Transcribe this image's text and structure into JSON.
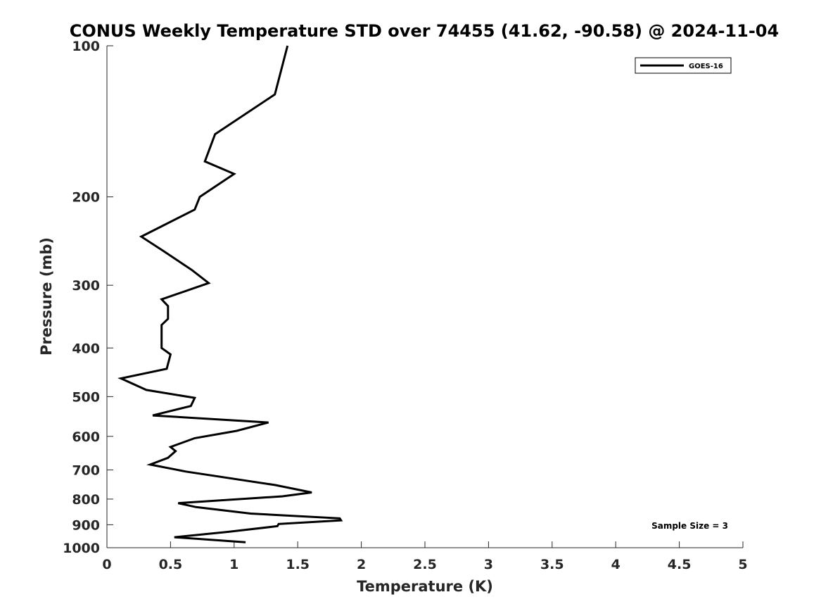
{
  "chart_data": {
    "type": "line",
    "title": "CONUS Weekly Temperature STD over 74455 (41.62, -90.58) @ 2024-11-04",
    "xlabel": "Temperature (K)",
    "ylabel": "Pressure (mb)",
    "xlim": [
      0,
      5
    ],
    "ylim": [
      100,
      1000
    ],
    "yscale": "log",
    "y_reversed": true,
    "x_ticks": [
      0,
      0.5,
      1,
      1.5,
      2,
      2.5,
      3,
      3.5,
      4,
      4.5,
      5
    ],
    "x_tick_labels": [
      "0",
      "0.5",
      "1",
      "1.5",
      "2",
      "2.5",
      "3",
      "3.5",
      "4",
      "4.5",
      "5"
    ],
    "y_ticks": [
      100,
      200,
      300,
      400,
      500,
      600,
      700,
      800,
      900,
      1000
    ],
    "y_tick_labels": [
      "100",
      "200",
      "300",
      "400",
      "500",
      "600",
      "700",
      "800",
      "900",
      "1000"
    ],
    "grid": false,
    "legend_position": "top-right",
    "annotation": "Sample Size = 3",
    "series": [
      {
        "name": "GOES-16",
        "color": "#000000",
        "points": [
          [
            1.42,
            100
          ],
          [
            1.32,
            125
          ],
          [
            0.85,
            150
          ],
          [
            0.77,
            170
          ],
          [
            1.0,
            180
          ],
          [
            0.73,
            200
          ],
          [
            0.69,
            212
          ],
          [
            0.27,
            240
          ],
          [
            0.45,
            257
          ],
          [
            0.67,
            280
          ],
          [
            0.8,
            297
          ],
          [
            0.43,
            320
          ],
          [
            0.48,
            330
          ],
          [
            0.48,
            350
          ],
          [
            0.43,
            360
          ],
          [
            0.43,
            375
          ],
          [
            0.43,
            400
          ],
          [
            0.5,
            412
          ],
          [
            0.47,
            440
          ],
          [
            0.11,
            460
          ],
          [
            0.31,
            485
          ],
          [
            0.69,
            503
          ],
          [
            0.66,
            522
          ],
          [
            0.36,
            545
          ],
          [
            1.27,
            563
          ],
          [
            1.02,
            585
          ],
          [
            0.69,
            605
          ],
          [
            0.5,
            630
          ],
          [
            0.54,
            642
          ],
          [
            0.48,
            662
          ],
          [
            0.34,
            683
          ],
          [
            0.62,
            705
          ],
          [
            1.32,
            750
          ],
          [
            1.61,
            776
          ],
          [
            1.38,
            790
          ],
          [
            0.56,
            815
          ],
          [
            0.7,
            830
          ],
          [
            1.13,
            855
          ],
          [
            1.83,
            874
          ],
          [
            1.84,
            882
          ],
          [
            1.35,
            897
          ],
          [
            1.34,
            906
          ],
          [
            0.95,
            930
          ],
          [
            0.53,
            953
          ],
          [
            1.09,
            975
          ]
        ]
      }
    ]
  }
}
